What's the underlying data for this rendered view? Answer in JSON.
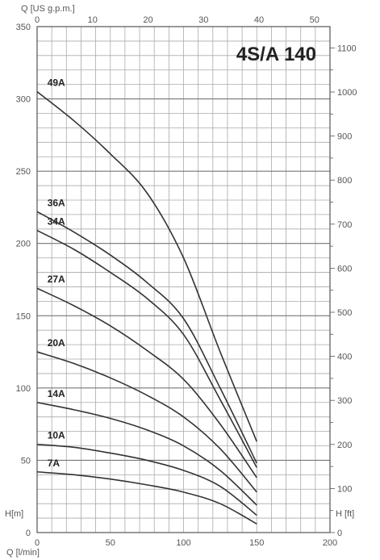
{
  "chart_data": {
    "type": "line",
    "title": "4S/A 140",
    "xlabel": "Q [l/min]",
    "x_top_label": "Q [US g.p.m.]",
    "ylabel": "H[m]",
    "y_right_label": "H [ft]",
    "xlim": [
      0,
      200
    ],
    "ylim": [
      0,
      350
    ],
    "x_top_lim": [
      0,
      52.8
    ],
    "y_right_lim": [
      0,
      1148.3
    ],
    "x_ticks": [
      "0",
      "50",
      "100",
      "150",
      "200"
    ],
    "y_ticks": [
      "0",
      "50",
      "100",
      "150",
      "200",
      "250",
      "300",
      "350"
    ],
    "x_top_ticks": [
      "0",
      "10",
      "20",
      "30",
      "40",
      "50"
    ],
    "y_right_ticks": [
      "0",
      "100",
      "200",
      "300",
      "400",
      "500",
      "600",
      "700",
      "800",
      "900",
      "1000",
      "1100"
    ],
    "grid": true,
    "series": [
      {
        "name": "49A",
        "x": [
          0,
          25,
          50,
          75,
          100,
          125,
          150
        ],
        "values": [
          305,
          285,
          262,
          235,
          190,
          125,
          63
        ]
      },
      {
        "name": "36A",
        "x": [
          0,
          25,
          50,
          75,
          100,
          125,
          150
        ],
        "values": [
          222,
          208,
          192,
          173,
          148,
          100,
          48
        ]
      },
      {
        "name": "34A",
        "x": [
          0,
          25,
          50,
          75,
          100,
          125,
          150
        ],
        "values": [
          209,
          196,
          180,
          162,
          137,
          92,
          45
        ]
      },
      {
        "name": "27A",
        "x": [
          0,
          25,
          50,
          75,
          100,
          125,
          150
        ],
        "values": [
          169,
          157,
          143,
          126,
          106,
          75,
          38
        ]
      },
      {
        "name": "20A",
        "x": [
          0,
          25,
          50,
          75,
          100,
          125,
          150
        ],
        "values": [
          125,
          117,
          107,
          95,
          80,
          58,
          28
        ]
      },
      {
        "name": "14A",
        "x": [
          0,
          25,
          50,
          75,
          100,
          125,
          150
        ],
        "values": [
          90,
          85,
          79,
          71,
          60,
          43,
          19
        ]
      },
      {
        "name": "10A",
        "x": [
          0,
          25,
          50,
          75,
          100,
          125,
          150
        ],
        "values": [
          61,
          59,
          55,
          50,
          43,
          32,
          12
        ]
      },
      {
        "name": "7A",
        "x": [
          0,
          25,
          50,
          75,
          100,
          125,
          150
        ],
        "values": [
          42,
          40,
          37,
          33,
          28,
          20,
          6
        ]
      }
    ]
  }
}
